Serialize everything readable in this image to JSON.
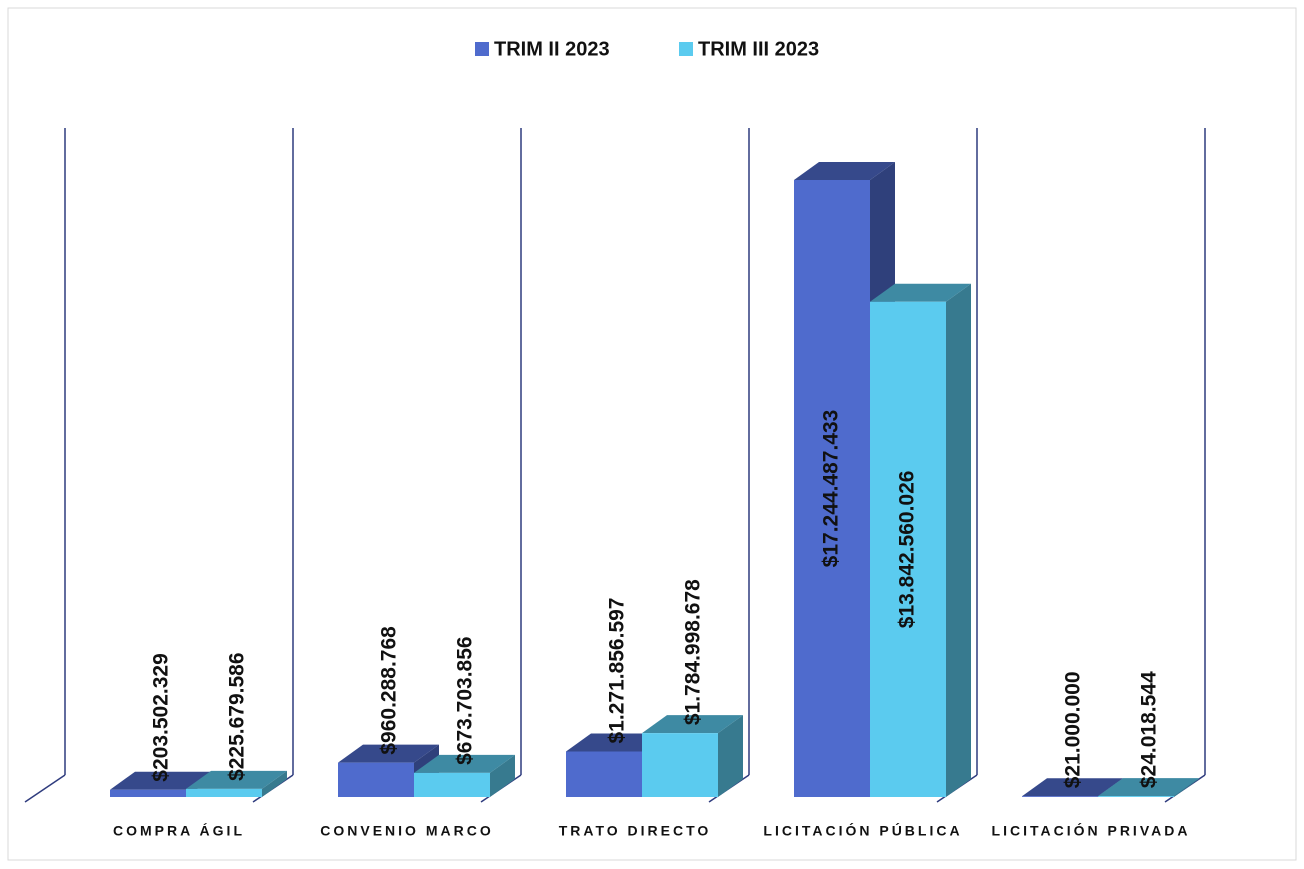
{
  "chart_data": {
    "type": "bar3d",
    "categories": [
      "COMPRA ÁGIL",
      "CONVENIO MARCO",
      "TRATO DIRECTO",
      "LICITACIÓN PÚBLICA",
      "LICITACIÓN PRIVADA"
    ],
    "series": [
      {
        "name": "TRIM II 2023",
        "color": "#4f6bcd",
        "values": [
          203502329,
          960288768,
          1271856597,
          17244487433,
          21000000
        ],
        "value_labels": [
          "$203.502.329",
          "$960.288.768",
          "$1.271.856.597",
          "$17.244.487.433",
          "$21.000.000"
        ]
      },
      {
        "name": "TRIM III 2023",
        "color": "#5bcbef",
        "values": [
          225679586,
          673703856,
          1784998678,
          13842560026,
          24018544
        ],
        "value_labels": [
          "$225.679.586",
          "$673.703.856",
          "$1.784.998.678",
          "$13.842.560.026",
          "$24.018.544"
        ]
      }
    ],
    "legend": "top"
  }
}
